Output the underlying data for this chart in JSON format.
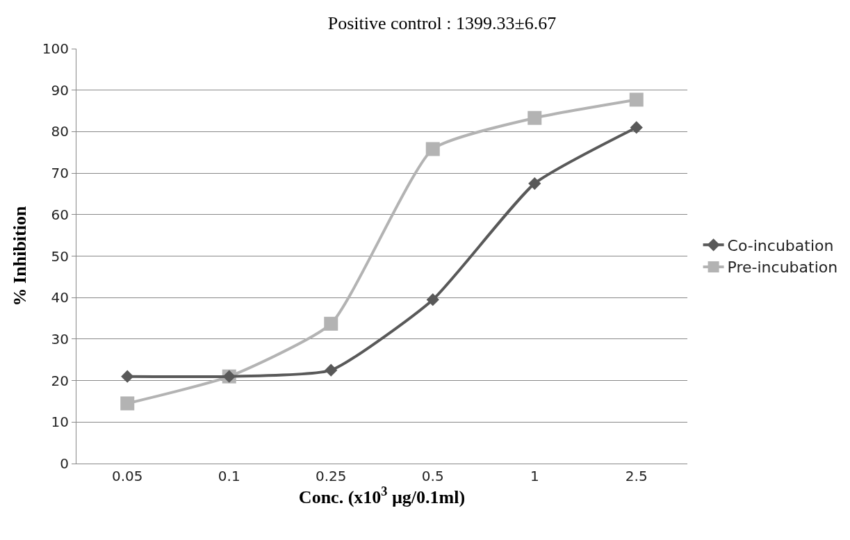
{
  "chart_data": {
    "type": "line",
    "title": "Positive control : 1399.33±6.67",
    "xlabel": "Conc. (x10$^{3}$ µg/0.1ml)",
    "ylabel": "% Inhibition",
    "categories": [
      "0.05",
      "0.1",
      "0.25",
      "0.5",
      "1",
      "2.5"
    ],
    "series": [
      {
        "name": "Co-incubation",
        "color": "#595959",
        "marker": "diamond",
        "values": [
          21,
          21,
          22.5,
          39.5,
          67.5,
          81
        ]
      },
      {
        "name": "Pre-incubation",
        "color": "#b3b3b3",
        "marker": "square",
        "values": [
          14.5,
          21,
          33.7,
          75.8,
          83.3,
          87.7
        ]
      }
    ],
    "ylim": [
      0,
      100
    ],
    "yticks": [
      0,
      10,
      20,
      30,
      40,
      50,
      60,
      70,
      80,
      90,
      100
    ],
    "grid": "y",
    "legend": "right"
  }
}
